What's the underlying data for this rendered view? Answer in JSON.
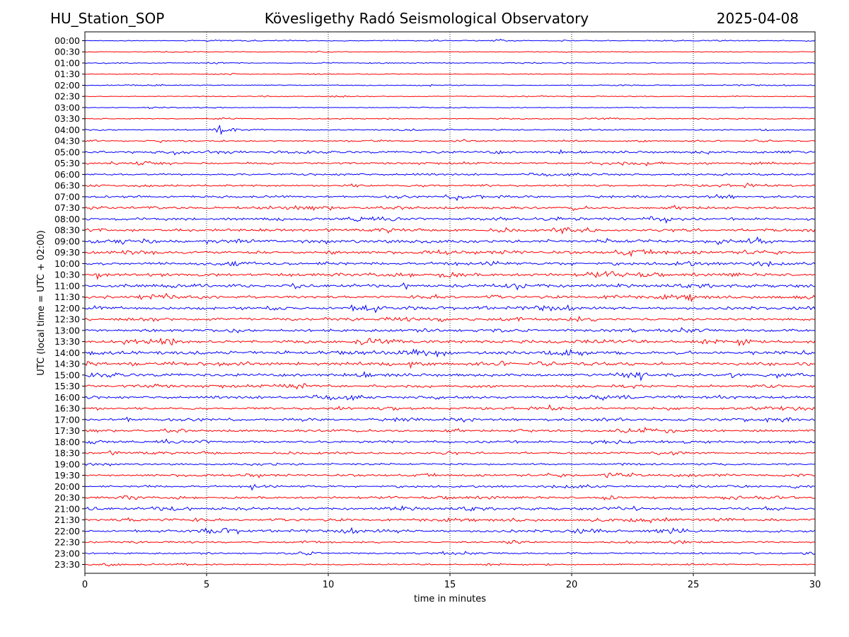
{
  "header": {
    "station": "HU_Station_SOP",
    "title": "Kövesligethy Radó Seismological Observatory",
    "date": "2025-04-08"
  },
  "chart_data": {
    "type": "line",
    "chart_kind": "helicorder",
    "xlabel": "time in minutes",
    "ylabel": "UTC (local time = UTC + 02:00)",
    "xlim": [
      0,
      30
    ],
    "xticks": [
      0,
      5,
      10,
      15,
      20,
      25,
      30
    ],
    "grid_x": "dotted vertical lines at x ticks",
    "colors": [
      "#0000ff",
      "#ff0000"
    ],
    "rows": [
      {
        "label": "00:00",
        "amp": 0.25,
        "events": [
          {
            "t": 16.9,
            "a": 1.1
          }
        ]
      },
      {
        "label": "00:30",
        "amp": 0.2,
        "events": []
      },
      {
        "label": "01:00",
        "amp": 0.22,
        "events": []
      },
      {
        "label": "01:30",
        "amp": 0.2,
        "events": []
      },
      {
        "label": "02:00",
        "amp": 0.25,
        "events": []
      },
      {
        "label": "02:30",
        "amp": 0.22,
        "events": []
      },
      {
        "label": "03:00",
        "amp": 0.22,
        "events": []
      },
      {
        "label": "03:30",
        "amp": 0.28,
        "events": [
          {
            "t": 5.5,
            "a": 1.1
          }
        ]
      },
      {
        "label": "04:00",
        "amp": 0.3,
        "events": [
          {
            "t": 5.45,
            "a": 5.0
          }
        ]
      },
      {
        "label": "04:30",
        "amp": 0.4,
        "events": []
      },
      {
        "label": "05:00",
        "amp": 0.6,
        "events": [
          {
            "t": 3.6,
            "a": 1.8
          },
          {
            "t": 8.2,
            "a": 1.4
          }
        ]
      },
      {
        "label": "05:30",
        "amp": 0.55,
        "events": []
      },
      {
        "label": "06:00",
        "amp": 0.5,
        "events": []
      },
      {
        "label": "06:30",
        "amp": 0.5,
        "events": []
      },
      {
        "label": "07:00",
        "amp": 0.55,
        "events": [
          {
            "t": 1.7,
            "a": 1.6
          },
          {
            "t": 15.2,
            "a": 1.3
          }
        ]
      },
      {
        "label": "07:30",
        "amp": 0.65,
        "events": [
          {
            "t": 11.5,
            "a": 1.5
          },
          {
            "t": 20.0,
            "a": 1.3
          }
        ]
      },
      {
        "label": "08:00",
        "amp": 0.7,
        "events": [
          {
            "t": 11.0,
            "a": 2.2
          }
        ]
      },
      {
        "label": "08:30",
        "amp": 0.7,
        "events": []
      },
      {
        "label": "09:00",
        "amp": 0.8,
        "events": [
          {
            "t": 5.0,
            "a": 1.6
          },
          {
            "t": 26.0,
            "a": 1.5
          }
        ]
      },
      {
        "label": "09:30",
        "amp": 0.75,
        "events": [
          {
            "t": 10.0,
            "a": 1.6
          }
        ]
      },
      {
        "label": "10:00",
        "amp": 0.75,
        "events": []
      },
      {
        "label": "10:30",
        "amp": 0.8,
        "events": [
          {
            "t": 0.5,
            "a": 1.5
          }
        ]
      },
      {
        "label": "11:00",
        "amp": 0.85,
        "events": [
          {
            "t": 8.5,
            "a": 1.7
          }
        ]
      },
      {
        "label": "11:30",
        "amp": 0.75,
        "events": [
          {
            "t": 24.8,
            "a": 1.6
          }
        ]
      },
      {
        "label": "12:00",
        "amp": 0.8,
        "events": [
          {
            "t": 7.5,
            "a": 1.5
          },
          {
            "t": 13.3,
            "a": 1.5
          }
        ]
      },
      {
        "label": "12:30",
        "amp": 0.7,
        "events": []
      },
      {
        "label": "13:00",
        "amp": 0.75,
        "events": []
      },
      {
        "label": "13:30",
        "amp": 0.85,
        "events": [
          {
            "t": 29.5,
            "a": 1.5
          }
        ]
      },
      {
        "label": "14:00",
        "amp": 0.9,
        "events": [
          {
            "t": 18.0,
            "a": 1.4
          }
        ]
      },
      {
        "label": "14:30",
        "amp": 0.85,
        "events": [
          {
            "t": 13.3,
            "a": 1.6
          }
        ]
      },
      {
        "label": "15:00",
        "amp": 0.8,
        "events": []
      },
      {
        "label": "15:30",
        "amp": 0.7,
        "events": [
          {
            "t": 8.7,
            "a": 1.6
          }
        ]
      },
      {
        "label": "16:00",
        "amp": 0.7,
        "events": [
          {
            "t": 10.7,
            "a": 1.6
          }
        ]
      },
      {
        "label": "16:30",
        "amp": 0.65,
        "events": [
          {
            "t": 19.0,
            "a": 1.5
          }
        ]
      },
      {
        "label": "17:00",
        "amp": 0.65,
        "events": []
      },
      {
        "label": "17:30",
        "amp": 0.65,
        "events": [
          {
            "t": 22.2,
            "a": 1.5
          }
        ]
      },
      {
        "label": "18:00",
        "amp": 0.65,
        "events": [
          {
            "t": 3.2,
            "a": 1.4
          }
        ]
      },
      {
        "label": "18:30",
        "amp": 0.55,
        "events": [
          {
            "t": 23.5,
            "a": 1.4
          }
        ]
      },
      {
        "label": "19:00",
        "amp": 0.45,
        "events": []
      },
      {
        "label": "19:30",
        "amp": 0.6,
        "events": [
          {
            "t": 18.9,
            "a": 1.6
          },
          {
            "t": 21.5,
            "a": 1.7
          }
        ]
      },
      {
        "label": "20:00",
        "amp": 0.55,
        "events": [
          {
            "t": 6.8,
            "a": 1.5
          },
          {
            "t": 29.0,
            "a": 1.4
          }
        ]
      },
      {
        "label": "20:30",
        "amp": 0.6,
        "events": [
          {
            "t": 1.7,
            "a": 1.8
          }
        ]
      },
      {
        "label": "21:00",
        "amp": 0.7,
        "events": [
          {
            "t": 0.1,
            "a": 1.5
          },
          {
            "t": 3.5,
            "a": 1.6
          }
        ]
      },
      {
        "label": "21:30",
        "amp": 0.7,
        "events": []
      },
      {
        "label": "22:00",
        "amp": 0.7,
        "events": [
          {
            "t": 4.8,
            "a": 1.5
          },
          {
            "t": 10.5,
            "a": 1.5
          }
        ]
      },
      {
        "label": "22:30",
        "amp": 0.45,
        "events": [
          {
            "t": 17.3,
            "a": 1.3
          }
        ]
      },
      {
        "label": "23:00",
        "amp": 0.45,
        "events": [
          {
            "t": 29.5,
            "a": 1.4
          }
        ]
      },
      {
        "label": "23:30",
        "amp": 0.35,
        "events": [
          {
            "t": 0.7,
            "a": 1.3
          }
        ]
      }
    ]
  }
}
